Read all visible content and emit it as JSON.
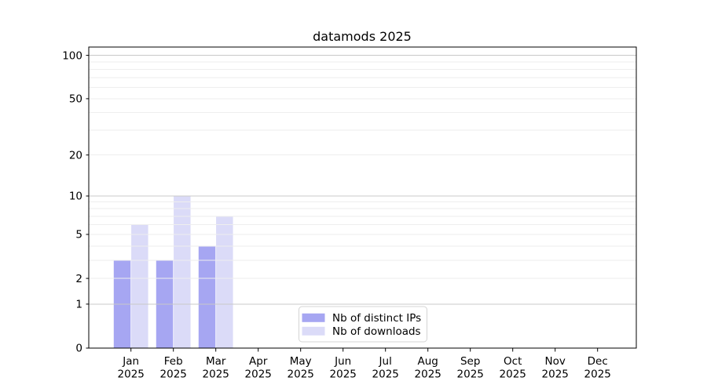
{
  "figure": {
    "background": "#ffffff"
  },
  "chart_data": {
    "type": "bar",
    "title": "datamods 2025",
    "categories": [
      "Jan",
      "Feb",
      "Mar",
      "Apr",
      "May",
      "Jun",
      "Jul",
      "Aug",
      "Sep",
      "Oct",
      "Nov",
      "Dec"
    ],
    "category_sublabel": "2025",
    "series": [
      {
        "name": "Nb of distinct IPs",
        "color": "#a6a6f2",
        "values": [
          3,
          3,
          4,
          0,
          0,
          0,
          0,
          0,
          0,
          0,
          0,
          0
        ]
      },
      {
        "name": "Nb of downloads",
        "color": "#dbdbf8",
        "values": [
          6,
          10,
          7,
          0,
          0,
          0,
          0,
          0,
          0,
          0,
          0,
          0
        ]
      }
    ],
    "xlabel": "",
    "ylabel": "",
    "yscale": "log1p",
    "ylim": [
      0,
      114
    ],
    "yticks": [
      0,
      1,
      2,
      5,
      10,
      20,
      50,
      100
    ],
    "grid": {
      "enabled": true,
      "major_at": [
        1,
        10,
        100
      ],
      "minor_at": [
        2,
        3,
        4,
        5,
        6,
        7,
        8,
        9,
        20,
        30,
        40,
        50,
        60,
        70,
        80,
        90
      ],
      "major_color": "#c8c8c8",
      "minor_color": "#eeeeee"
    },
    "legend": {
      "location": "lower-center",
      "border_color": "#d4d4d4",
      "background": "#ffffff",
      "entries": [
        "Nb of distinct IPs",
        "Nb of downloads"
      ]
    },
    "axis_color": "#000000"
  }
}
